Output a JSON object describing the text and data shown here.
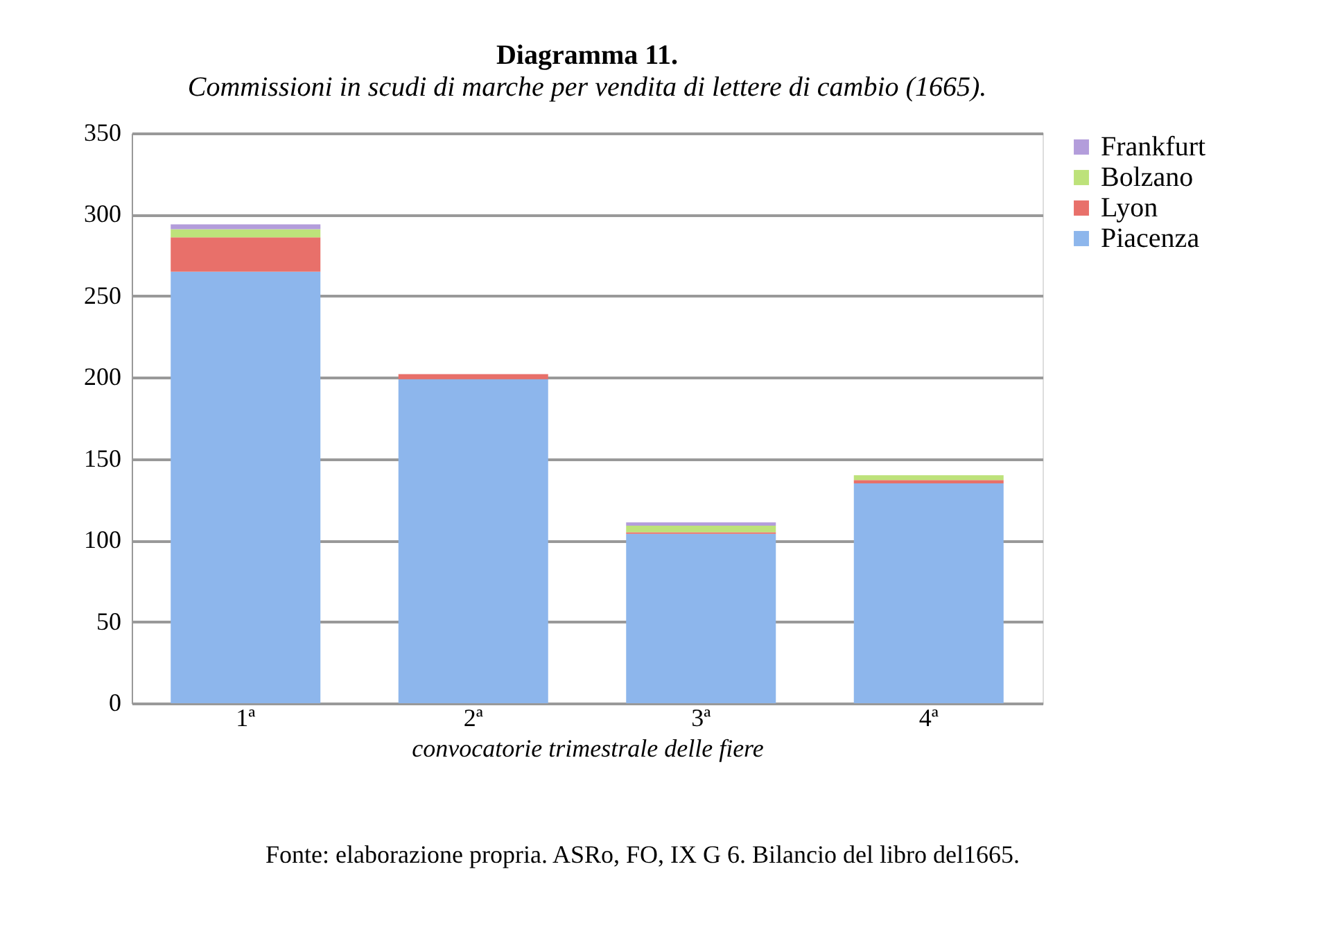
{
  "chart_data": {
    "type": "bar",
    "stacked": true,
    "title": "Diagramma 11.",
    "subtitle": "Commissioni in scudi di marche per vendita di lettere di cambio (1665).",
    "xlabel": "convocatorie trimestrale delle fiere",
    "categories": [
      "1ª",
      "2ª",
      "3ª",
      "4ª"
    ],
    "series": [
      {
        "name": "Piacenza",
        "color": "#8db6ec",
        "values": [
          265,
          199,
          104,
          135
        ]
      },
      {
        "name": "Lyon",
        "color": "#e8706a",
        "values": [
          21,
          3,
          1,
          2
        ]
      },
      {
        "name": "Bolzano",
        "color": "#bde27a",
        "values": [
          5,
          0,
          4,
          3
        ]
      },
      {
        "name": "Frankfurt",
        "color": "#b39ddb",
        "values": [
          3,
          0,
          2,
          0
        ]
      }
    ],
    "ylim": [
      0,
      350
    ],
    "yticks": [
      0,
      50,
      100,
      150,
      200,
      250,
      300,
      350
    ],
    "grid": "y",
    "legend": "right",
    "annotations": [
      "Fonte: elaborazione propria.  ASRo, FO, IX G 6. Bilancio del libro del1665."
    ]
  }
}
